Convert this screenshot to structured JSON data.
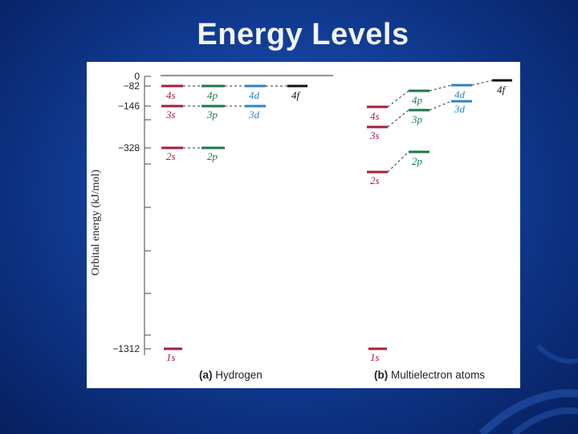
{
  "slide": {
    "title": "Energy Levels"
  },
  "diagram": {
    "y_axis_label": "Orbital energy (kJ/mol)",
    "tick_labels": [
      "0",
      "−82",
      "−146",
      "−328",
      "−1312"
    ],
    "panel_a_caption": {
      "letter": "(a)",
      "text": "Hydrogen"
    },
    "panel_b_caption": {
      "letter": "(b)",
      "text": "Multielectron atoms"
    },
    "hydrogen_levels": {
      "4s": "4s",
      "4p": "4p",
      "4d": "4d",
      "4f": "4f",
      "3s": "3s",
      "3p": "3p",
      "3d": "3d",
      "2s": "2s",
      "2p": "2p",
      "1s": "1s"
    },
    "multielectron_levels": {
      "4s": "4s",
      "4p": "4p",
      "4d": "4d",
      "4f": "4f",
      "3s": "3s",
      "3p": "3p",
      "3d": "3d",
      "2s": "2s",
      "2p": "2p",
      "1s": "1s"
    },
    "colors": {
      "s": "#a51e3c",
      "p": "#1a7a46",
      "d": "#2a86c8",
      "f": "#111111"
    }
  }
}
